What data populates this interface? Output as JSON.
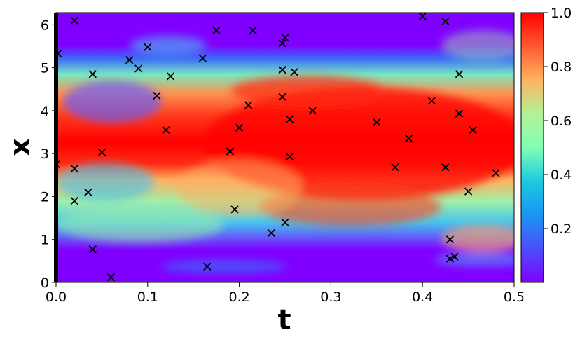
{
  "chart_data": {
    "type": "heatmap",
    "xlabel": "t",
    "ylabel": "x",
    "xlim": [
      0.0,
      0.5
    ],
    "ylim": [
      0,
      6.2832
    ],
    "x_ticks": [
      "0.0",
      "0.1",
      "0.2",
      "0.3",
      "0.4",
      "0.5"
    ],
    "y_ticks": [
      "0",
      "1",
      "2",
      "3",
      "4",
      "5",
      "6"
    ],
    "colorbar": {
      "colormap": "rainbow",
      "range": [
        0.0,
        1.0
      ],
      "ticks": [
        "0.2",
        "0.4",
        "0.6",
        "0.8",
        "1.0"
      ]
    },
    "heatmap_description": "Amplitude field: high (~1.0) band centered near x=3 across all t, spreading to x≈1.5–4.7 for t>0.1; low (~0) regions near x<0.8 and x>5.2, with faint features near x≈5.8 at t≈0.15–0.25 and x≈0.3 at t≈0.2.",
    "grid": false,
    "colors": {
      "marker": "#000000"
    },
    "points_marker": "x",
    "points": [
      {
        "t": 0.002,
        "x": 5.33
      },
      {
        "t": 0.02,
        "x": 6.1
      },
      {
        "t": 0.04,
        "x": 4.85
      },
      {
        "t": 0.08,
        "x": 5.18
      },
      {
        "t": 0.09,
        "x": 4.98
      },
      {
        "t": 0.1,
        "x": 5.48
      },
      {
        "t": 0.11,
        "x": 4.35
      },
      {
        "t": 0.125,
        "x": 4.8
      },
      {
        "t": 0.12,
        "x": 3.55
      },
      {
        "t": 0.16,
        "x": 5.22
      },
      {
        "t": 0.175,
        "x": 5.87
      },
      {
        "t": 0.215,
        "x": 5.87
      },
      {
        "t": 0.25,
        "x": 5.7
      },
      {
        "t": 0.247,
        "x": 5.57
      },
      {
        "t": 0.247,
        "x": 4.95
      },
      {
        "t": 0.26,
        "x": 4.9
      },
      {
        "t": 0.247,
        "x": 4.32
      },
      {
        "t": 0.21,
        "x": 4.13
      },
      {
        "t": 0.255,
        "x": 3.8
      },
      {
        "t": 0.2,
        "x": 3.6
      },
      {
        "t": 0.28,
        "x": 4.0
      },
      {
        "t": 0.19,
        "x": 3.05
      },
      {
        "t": 0.255,
        "x": 2.93
      },
      {
        "t": 0.05,
        "x": 3.03
      },
      {
        "t": 0.0,
        "x": 2.75
      },
      {
        "t": 0.02,
        "x": 2.65
      },
      {
        "t": 0.035,
        "x": 2.1
      },
      {
        "t": 0.02,
        "x": 1.9
      },
      {
        "t": 0.195,
        "x": 1.7
      },
      {
        "t": 0.235,
        "x": 1.15
      },
      {
        "t": 0.25,
        "x": 1.4
      },
      {
        "t": 0.04,
        "x": 0.77
      },
      {
        "t": 0.06,
        "x": 0.12
      },
      {
        "t": 0.165,
        "x": 0.37
      },
      {
        "t": 0.35,
        "x": 3.73
      },
      {
        "t": 0.37,
        "x": 2.68
      },
      {
        "t": 0.385,
        "x": 3.35
      },
      {
        "t": 0.4,
        "x": 6.2
      },
      {
        "t": 0.425,
        "x": 6.08
      },
      {
        "t": 0.41,
        "x": 4.23
      },
      {
        "t": 0.44,
        "x": 4.85
      },
      {
        "t": 0.44,
        "x": 3.93
      },
      {
        "t": 0.455,
        "x": 3.55
      },
      {
        "t": 0.425,
        "x": 2.68
      },
      {
        "t": 0.45,
        "x": 2.12
      },
      {
        "t": 0.48,
        "x": 2.55
      },
      {
        "t": 0.43,
        "x": 1.0
      },
      {
        "t": 0.435,
        "x": 0.6
      },
      {
        "t": 0.43,
        "x": 0.55
      }
    ]
  }
}
